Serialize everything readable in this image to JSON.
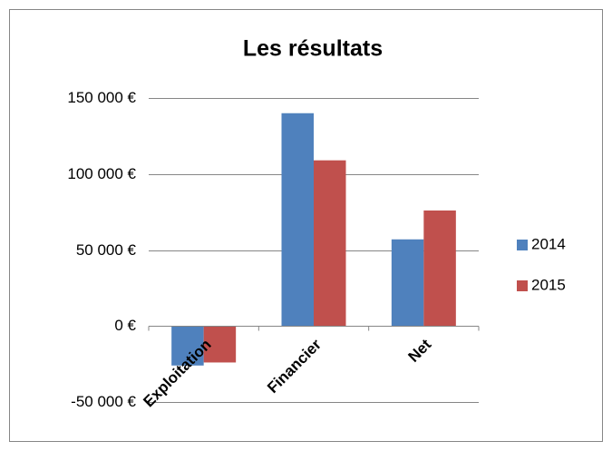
{
  "chart_data": {
    "type": "bar",
    "title": "Les résultats",
    "categories": [
      "Exploitation",
      "Financier",
      "Net"
    ],
    "series": [
      {
        "name": "2014",
        "color": "#4f81bd",
        "values": [
          -26000,
          140000,
          57000
        ]
      },
      {
        "name": "2015",
        "color": "#c0504d",
        "values": [
          -24000,
          109000,
          76000
        ]
      }
    ],
    "ylim": [
      -50000,
      150000
    ],
    "yticks": [
      {
        "value": -50000,
        "label": "-50 000 €"
      },
      {
        "value": 0,
        "label": "0 €"
      },
      {
        "value": 50000,
        "label": "50 000 €"
      },
      {
        "value": 100000,
        "label": "100 000 €"
      },
      {
        "value": 150000,
        "label": "150 000 €"
      }
    ],
    "grid": true,
    "legend": "right"
  }
}
